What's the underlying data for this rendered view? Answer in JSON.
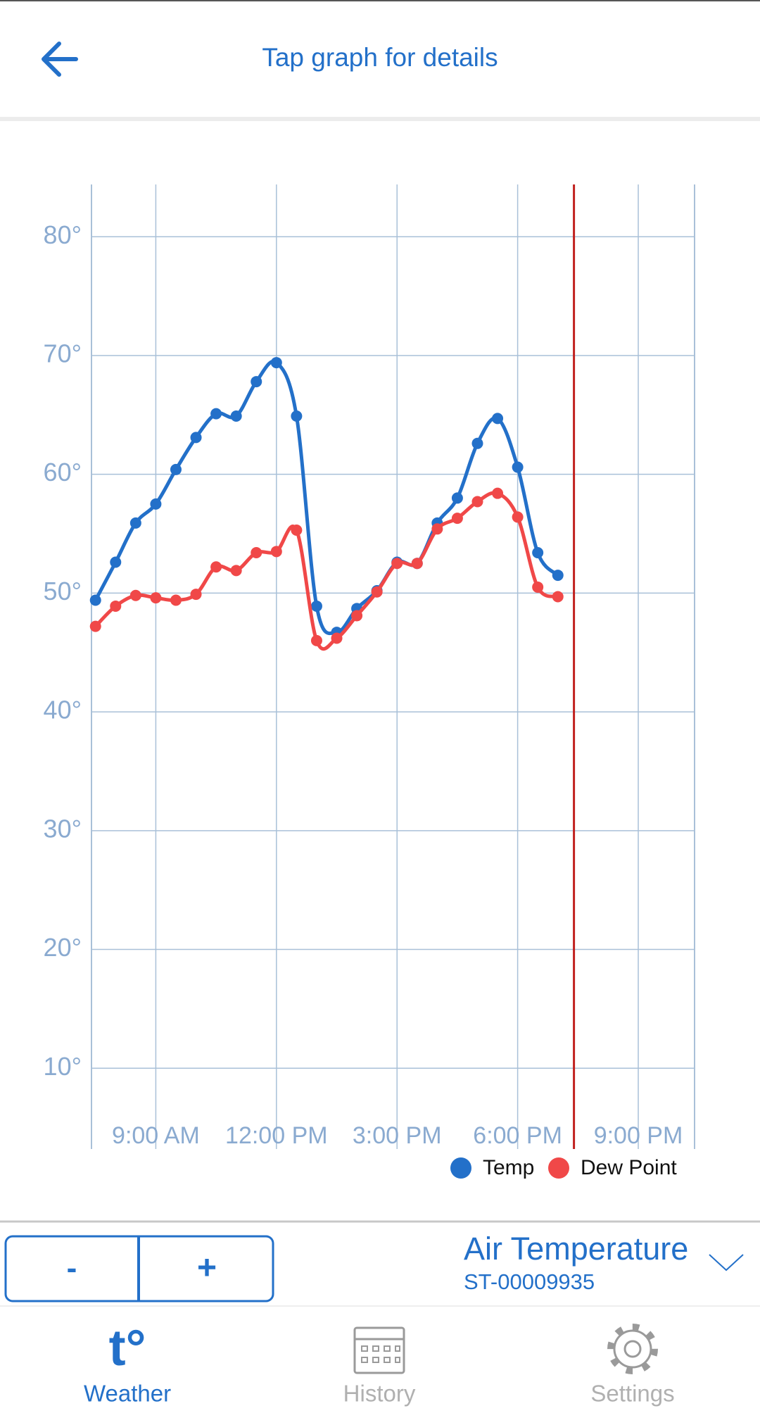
{
  "header": {
    "title": "Tap graph for details"
  },
  "chart_data": {
    "type": "line",
    "x": [
      7.5,
      8,
      8.5,
      9,
      9.5,
      10,
      10.5,
      11,
      11.5,
      12,
      12.5,
      13,
      13.5,
      14,
      14.5,
      15,
      15.5,
      16,
      16.5,
      17,
      17.5,
      18,
      18.5,
      19
    ],
    "series": [
      {
        "name": "Temp",
        "color": "#2370c9",
        "values": [
          49.4,
          52.6,
          55.9,
          57.5,
          60.4,
          63.1,
          65.1,
          64.9,
          67.8,
          69.4,
          64.9,
          48.9,
          46.7,
          48.7,
          50.2,
          52.6,
          52.5,
          55.9,
          58.0,
          62.6,
          64.7,
          60.6,
          53.4,
          51.5
        ]
      },
      {
        "name": "Dew Point",
        "color": "#f04848",
        "values": [
          47.2,
          48.9,
          49.8,
          49.6,
          49.4,
          49.9,
          52.2,
          51.9,
          53.4,
          53.5,
          55.3,
          46.0,
          46.2,
          48.1,
          50.1,
          52.5,
          52.5,
          55.4,
          56.3,
          57.7,
          58.4,
          56.4,
          50.5,
          49.7
        ]
      }
    ],
    "xlim": [
      7.4,
      22.4
    ],
    "xticks": [
      {
        "value": 9,
        "label": "9:00 AM"
      },
      {
        "value": 12,
        "label": "12:00 PM"
      },
      {
        "value": 15,
        "label": "3:00 PM"
      },
      {
        "value": 18,
        "label": "6:00 PM"
      },
      {
        "value": 21,
        "label": "9:00 PM"
      }
    ],
    "ylim": [
      3.2,
      84.4
    ],
    "yticks": [
      {
        "value": 10,
        "label": "10°"
      },
      {
        "value": 20,
        "label": "20°"
      },
      {
        "value": 30,
        "label": "30°"
      },
      {
        "value": 40,
        "label": "40°"
      },
      {
        "value": 50,
        "label": "50°"
      },
      {
        "value": 60,
        "label": "60°"
      },
      {
        "value": 70,
        "label": "70°"
      },
      {
        "value": 80,
        "label": "80°"
      }
    ],
    "now_marker": 19.4,
    "grid": true,
    "legend": "bottom-right"
  },
  "controls": {
    "minus": "-",
    "plus": "+"
  },
  "sensor": {
    "name": "Air Temperature",
    "id": "ST-00009935"
  },
  "tabs": [
    {
      "icon": "t°",
      "label": "Weather"
    },
    {
      "label": "History"
    },
    {
      "label": "Settings"
    }
  ]
}
